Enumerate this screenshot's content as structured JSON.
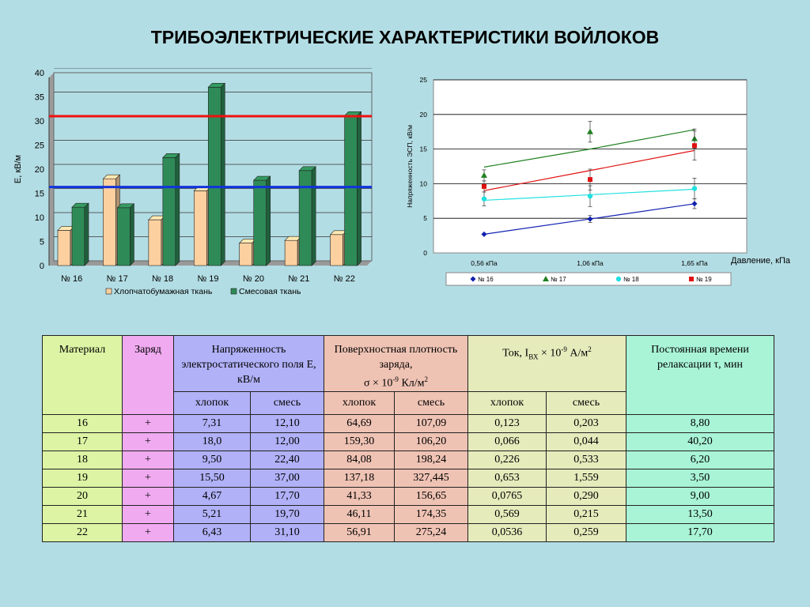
{
  "title": "ТРИБОЭЛЕКТРИЧЕСКИЕ ХАРАКТЕРИСТИКИ ВОЙЛОКОВ",
  "chart_data": [
    {
      "type": "bar",
      "ylabel": "Е, кВ/м",
      "ylim": [
        0,
        40
      ],
      "yticks": [
        0,
        5,
        10,
        15,
        20,
        25,
        30,
        35,
        40
      ],
      "categories": [
        "№ 16",
        "№ 17",
        "№ 18",
        "№ 19",
        "№ 20",
        "№ 21",
        "№ 22"
      ],
      "series": [
        {
          "name": "Хлопчатобумажная ткань",
          "color": "#fdd0a0",
          "values": [
            7.31,
            18.0,
            9.5,
            15.5,
            4.67,
            5.21,
            6.43
          ]
        },
        {
          "name": "Смесовая ткань",
          "color": "#2e8b57",
          "values": [
            12.1,
            12.0,
            22.4,
            37.0,
            17.7,
            19.7,
            31.1
          ]
        }
      ],
      "reference_lines": [
        {
          "value": 30.5,
          "color": "#ee1111"
        },
        {
          "value": 15.8,
          "color": "#1133dd"
        }
      ],
      "grid": true,
      "legend": "bottom"
    },
    {
      "type": "line",
      "ylabel": "Напряженность ЭСП, кВ/м",
      "xlabel": "Давление, кПа",
      "ylim": [
        0,
        25
      ],
      "yticks": [
        0,
        5,
        10,
        15,
        20,
        25
      ],
      "x": [
        "0,56 кПа",
        "1,06 кПа",
        "1,65 кПа"
      ],
      "grid": true,
      "legend": "bottom",
      "series": [
        {
          "name": "№ 16",
          "color": "#1020b0",
          "marker": "diamond",
          "values": [
            2.7,
            4.9,
            7.1
          ],
          "trend": [
            2.7,
            4.9,
            7.1
          ],
          "err": [
            0,
            0.5,
            0.7
          ]
        },
        {
          "name": "№ 17",
          "color": "#208020",
          "marker": "triangle",
          "values": [
            11.2,
            17.5,
            16.5
          ],
          "trend": [
            12.4,
            15.0,
            17.8
          ],
          "err": [
            0.8,
            1.5,
            1.4
          ]
        },
        {
          "name": "№ 18",
          "color": "#20e0e0",
          "marker": "circle",
          "values": [
            7.8,
            8.2,
            9.3
          ],
          "trend": [
            7.6,
            8.4,
            9.2
          ],
          "err": [
            1.0,
            1.5,
            1.5
          ]
        },
        {
          "name": "№ 19",
          "color": "#e01010",
          "marker": "square",
          "values": [
            9.6,
            10.6,
            15.5
          ],
          "trend": [
            9.0,
            11.9,
            14.8
          ],
          "err": [
            0.8,
            1.5,
            2.1
          ]
        }
      ]
    },
    {
      "type": "table",
      "headers": {
        "material": "Материал",
        "charge": "Заряд",
        "e_field": "Напряженность электростатического поля Е, кВ/м",
        "sigma_a": "Поверхностная плотность заряда,",
        "sigma_b": "σ × 10",
        "sigma_exp": "-9",
        "sigma_unit": " Кл/м",
        "sigma_unit_exp": "2",
        "current_a": "Ток, I",
        "current_sub": "ВХ",
        "current_b": " × 10",
        "current_exp": "-9",
        "current_unit": " А/м",
        "current_unit_exp": "2",
        "tau": "Постоянная времени релаксации τ, мин",
        "cotton": "хлопок",
        "blend": "смесь"
      },
      "rows": [
        [
          "16",
          "+",
          "7,31",
          "12,10",
          "64,69",
          "107,09",
          "0,123",
          "0,203",
          "8,80"
        ],
        [
          "17",
          "+",
          "18,0",
          "12,00",
          "159,30",
          "106,20",
          "0,066",
          "0,044",
          "40,20"
        ],
        [
          "18",
          "+",
          "9,50",
          "22,40",
          "84,08",
          "198,24",
          "0,226",
          "0,533",
          "6,20"
        ],
        [
          "19",
          "+",
          "15,50",
          "37,00",
          "137,18",
          "327,445",
          "0,653",
          "1,559",
          "3,50"
        ],
        [
          "20",
          "+",
          "4,67",
          "17,70",
          "41,33",
          "156,65",
          "0,0765",
          "0,290",
          "9,00"
        ],
        [
          "21",
          "+",
          "5,21",
          "19,70",
          "46,11",
          "174,35",
          "0,569",
          "0,215",
          "13,50"
        ],
        [
          "22",
          "+",
          "6,43",
          "31,10",
          "56,91",
          "275,24",
          "0,0536",
          "0,259",
          "17,70"
        ]
      ]
    }
  ]
}
